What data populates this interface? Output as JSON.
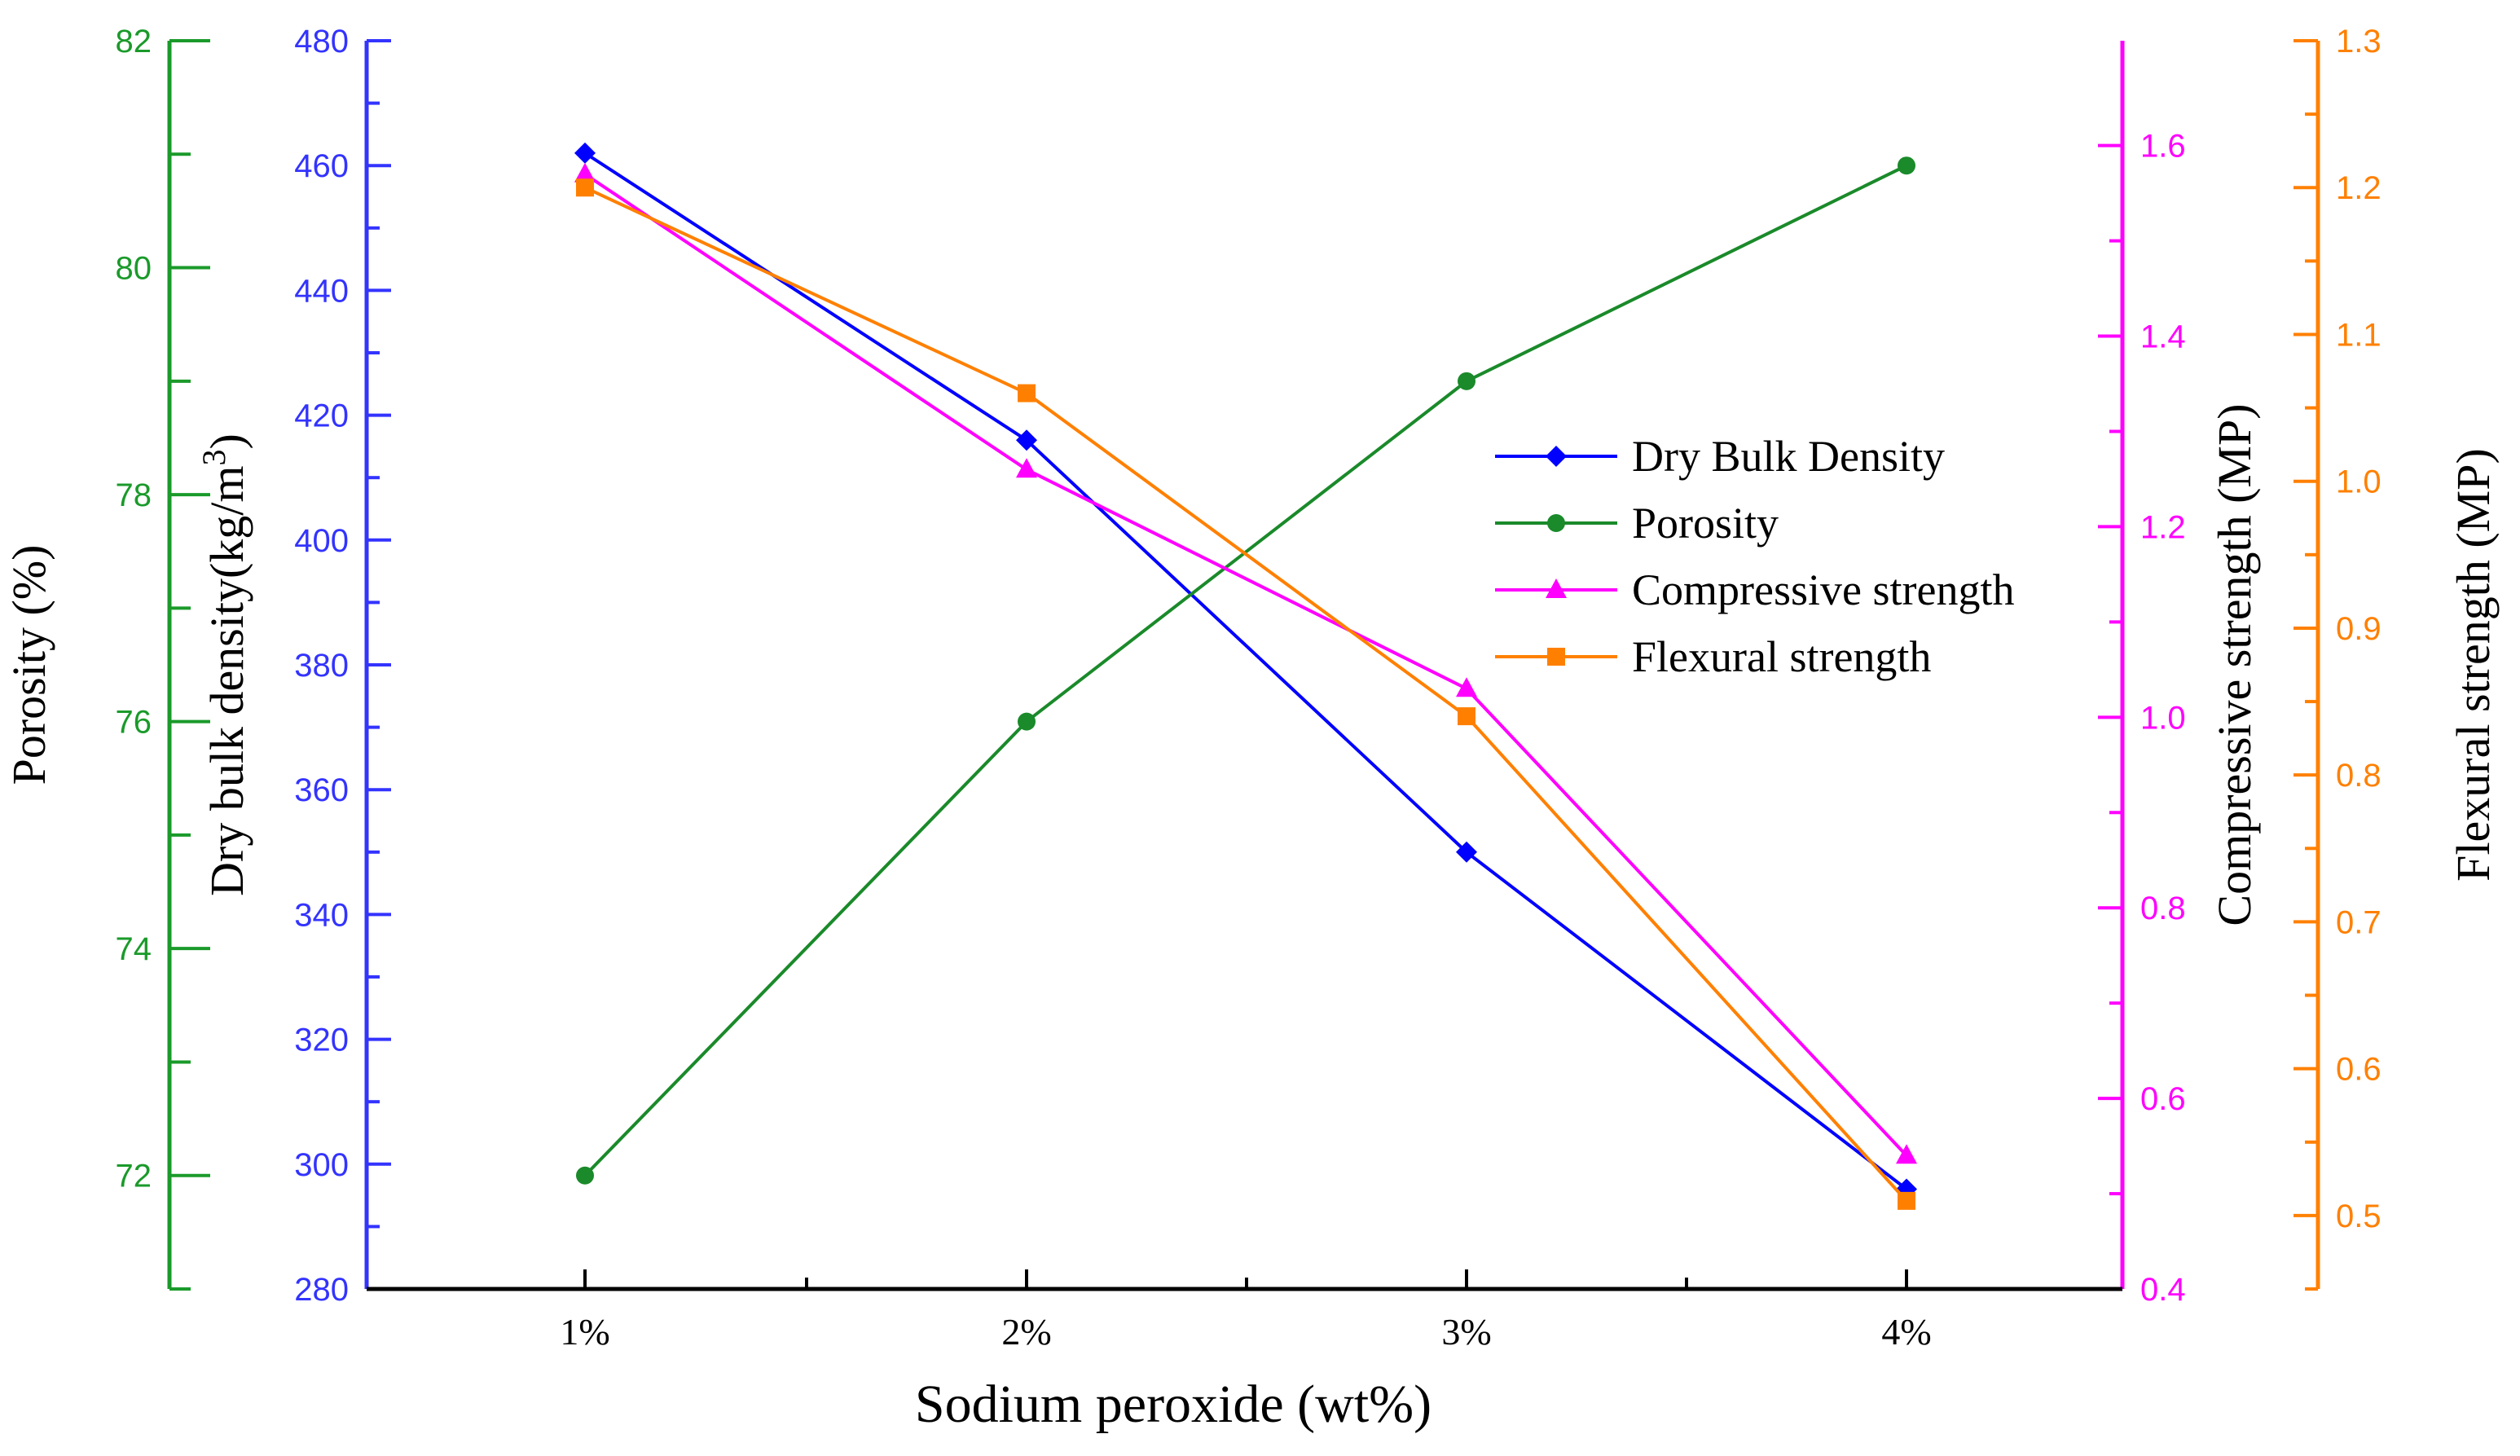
{
  "chart_data": {
    "type": "line",
    "categories": [
      "1%",
      "2%",
      "3%",
      "4%"
    ],
    "xlabel": "Sodium peroxide (wt%)",
    "grid": false,
    "legend_position": "center-right",
    "axes": [
      {
        "id": "porosity",
        "label": "Porosity (%)",
        "color": "#1a9a2a",
        "range": [
          71,
          82
        ],
        "ticks": [
          72,
          74,
          76,
          78,
          80,
          82
        ],
        "tick_labels": [
          "72",
          "74",
          "76",
          "78",
          "80",
          "82"
        ]
      },
      {
        "id": "density",
        "label": "Dry bulk density(kg/m",
        "label_sup": "3",
        "label_end": ")",
        "color": "#3333ff",
        "range": [
          280,
          480
        ],
        "ticks": [
          280,
          300,
          320,
          340,
          360,
          380,
          400,
          420,
          440,
          460,
          480
        ],
        "tick_labels": [
          "280",
          "300",
          "320",
          "340",
          "360",
          "380",
          "400",
          "420",
          "440",
          "460",
          "480"
        ]
      },
      {
        "id": "compressive",
        "label": "Compressive strength (MP)",
        "color": "#ff00ff",
        "range": [
          0.4,
          1.71
        ],
        "ticks": [
          0.4,
          0.6,
          0.8,
          1.0,
          1.2,
          1.4,
          1.6
        ],
        "tick_labels": [
          "0.4",
          "0.6",
          "0.8",
          "1.0",
          "1.2",
          "1.4",
          "1.6"
        ]
      },
      {
        "id": "flexural",
        "label": "Flexural strength (MP)",
        "color": "#ff8000",
        "range": [
          0.45,
          1.3
        ],
        "ticks": [
          0.5,
          0.6,
          0.7,
          0.8,
          0.9,
          1.0,
          1.1,
          1.2,
          1.3
        ],
        "tick_labels": [
          "0.5",
          "0.6",
          "0.7",
          "0.8",
          "0.9",
          "1.0",
          "1.1",
          "1.2",
          "1.3"
        ]
      }
    ],
    "series": [
      {
        "name": "Dry Bulk Density",
        "axis": "density",
        "color": "#0000ff",
        "marker": "diamond",
        "values": [
          462,
          416,
          350,
          296
        ]
      },
      {
        "name": "Porosity",
        "axis": "porosity",
        "color": "#1a8a2a",
        "marker": "circle",
        "values": [
          72.0,
          76.0,
          79.0,
          80.9
        ]
      },
      {
        "name": "Compressive strength",
        "axis": "compressive",
        "color": "#ff00ff",
        "marker": "triangle",
        "values": [
          1.57,
          1.26,
          1.03,
          0.54
        ]
      },
      {
        "name": "Flexural strength",
        "axis": "flexural",
        "color": "#ff8000",
        "marker": "square",
        "values": [
          1.2,
          1.06,
          0.84,
          0.51
        ]
      }
    ]
  }
}
